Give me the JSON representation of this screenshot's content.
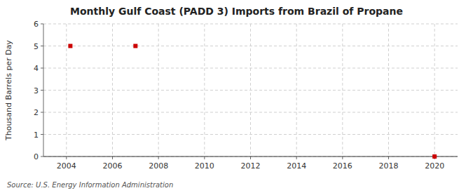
{
  "chart_data": {
    "type": "scatter",
    "title": "Monthly Gulf Coast (PADD 3) Imports from Brazil of Propane",
    "ylabel": "Thousand Barrels per Day",
    "source": "Source: U.S. Energy Information Administration",
    "x": [
      2004.17,
      2007.0,
      2020.0
    ],
    "values": [
      5.0,
      5.0,
      0.0
    ],
    "color": "#cc0000",
    "marker": "square",
    "xlim": [
      2003.0,
      2021.0
    ],
    "ylim": [
      0,
      6
    ],
    "xticks": [
      2004,
      2006,
      2008,
      2010,
      2012,
      2014,
      2016,
      2018,
      2020
    ],
    "yticks": [
      0,
      1,
      2,
      3,
      4,
      5,
      6
    ],
    "grid": true
  }
}
